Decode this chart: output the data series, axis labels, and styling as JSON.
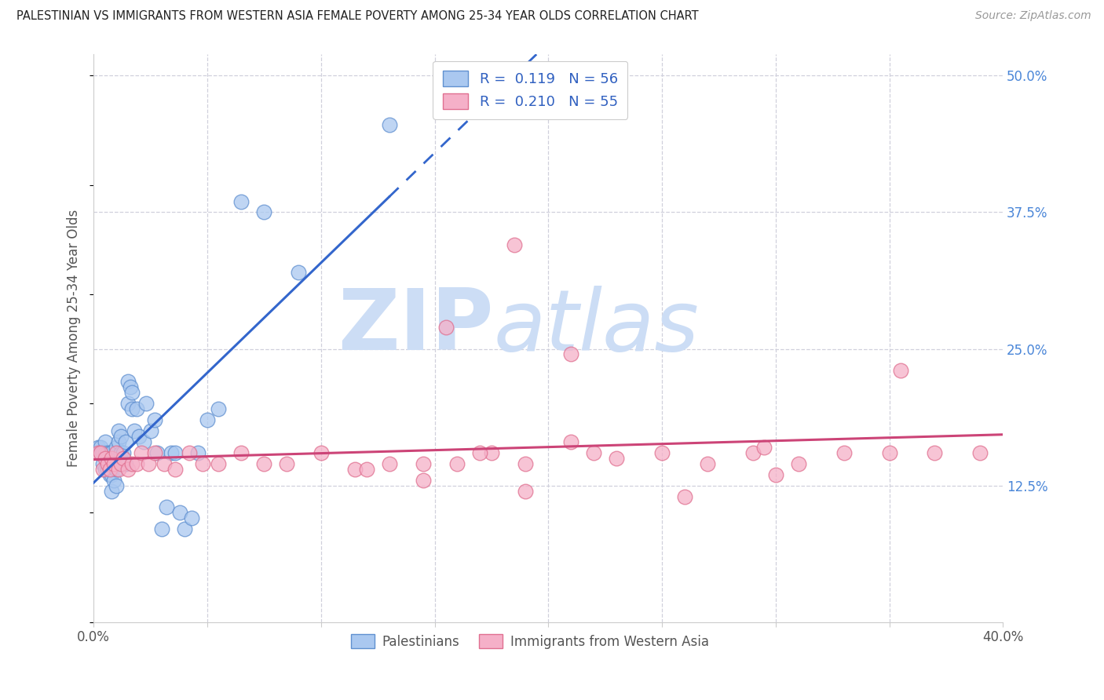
{
  "title": "PALESTINIAN VS IMMIGRANTS FROM WESTERN ASIA FEMALE POVERTY AMONG 25-34 YEAR OLDS CORRELATION CHART",
  "source": "Source: ZipAtlas.com",
  "ylabel": "Female Poverty Among 25-34 Year Olds",
  "xlim": [
    0.0,
    0.4
  ],
  "ylim": [
    0.0,
    0.52
  ],
  "xticks": [
    0.0,
    0.05,
    0.1,
    0.15,
    0.2,
    0.25,
    0.3,
    0.35,
    0.4
  ],
  "xticklabels": [
    "0.0%",
    "",
    "",
    "",
    "",
    "",
    "",
    "",
    "40.0%"
  ],
  "ytick_positions": [
    0.0,
    0.125,
    0.25,
    0.375,
    0.5
  ],
  "yticklabels_right": [
    "",
    "12.5%",
    "25.0%",
    "37.5%",
    "50.0%"
  ],
  "blue_color": "#aac8f0",
  "pink_color": "#f5b0c8",
  "blue_edge_color": "#6090d0",
  "pink_edge_color": "#e07090",
  "blue_line_color": "#3366cc",
  "pink_line_color": "#cc4477",
  "grid_color": "#d0d0dc",
  "background_color": "#ffffff",
  "watermark_text": "ZIPatlas",
  "watermark_color": "#ccddf5",
  "legend_R1": "0.119",
  "legend_N1": "56",
  "legend_R2": "0.210",
  "legend_N2": "55",
  "legend_text_color": "#3060c0",
  "palestinians_x": [
    0.002,
    0.003,
    0.003,
    0.004,
    0.004,
    0.005,
    0.005,
    0.005,
    0.006,
    0.006,
    0.006,
    0.007,
    0.007,
    0.007,
    0.008,
    0.008,
    0.008,
    0.009,
    0.009,
    0.01,
    0.01,
    0.01,
    0.011,
    0.011,
    0.012,
    0.012,
    0.013,
    0.014,
    0.014,
    0.015,
    0.015,
    0.016,
    0.017,
    0.017,
    0.018,
    0.019,
    0.02,
    0.022,
    0.023,
    0.025,
    0.027,
    0.028,
    0.03,
    0.032,
    0.034,
    0.036,
    0.038,
    0.04,
    0.043,
    0.046,
    0.05,
    0.055,
    0.065,
    0.075,
    0.09,
    0.13
  ],
  "palestinians_y": [
    0.16,
    0.155,
    0.16,
    0.145,
    0.155,
    0.14,
    0.155,
    0.165,
    0.14,
    0.15,
    0.155,
    0.135,
    0.145,
    0.155,
    0.12,
    0.135,
    0.155,
    0.13,
    0.145,
    0.125,
    0.14,
    0.16,
    0.165,
    0.175,
    0.155,
    0.17,
    0.155,
    0.145,
    0.165,
    0.2,
    0.22,
    0.215,
    0.195,
    0.21,
    0.175,
    0.195,
    0.17,
    0.165,
    0.2,
    0.175,
    0.185,
    0.155,
    0.085,
    0.105,
    0.155,
    0.155,
    0.1,
    0.085,
    0.095,
    0.155,
    0.185,
    0.195,
    0.385,
    0.375,
    0.32,
    0.455
  ],
  "immigrants_x": [
    0.002,
    0.003,
    0.004,
    0.005,
    0.006,
    0.007,
    0.008,
    0.009,
    0.01,
    0.011,
    0.012,
    0.013,
    0.015,
    0.017,
    0.019,
    0.021,
    0.024,
    0.027,
    0.031,
    0.036,
    0.042,
    0.048,
    0.055,
    0.065,
    0.075,
    0.085,
    0.1,
    0.115,
    0.13,
    0.145,
    0.16,
    0.175,
    0.19,
    0.21,
    0.23,
    0.25,
    0.27,
    0.29,
    0.31,
    0.33,
    0.35,
    0.37,
    0.39,
    0.17,
    0.22,
    0.12,
    0.145,
    0.19,
    0.26,
    0.3,
    0.21,
    0.155,
    0.295,
    0.185,
    0.355
  ],
  "immigrants_y": [
    0.155,
    0.155,
    0.14,
    0.15,
    0.145,
    0.14,
    0.15,
    0.145,
    0.155,
    0.14,
    0.145,
    0.15,
    0.14,
    0.145,
    0.145,
    0.155,
    0.145,
    0.155,
    0.145,
    0.14,
    0.155,
    0.145,
    0.145,
    0.155,
    0.145,
    0.145,
    0.155,
    0.14,
    0.145,
    0.145,
    0.145,
    0.155,
    0.145,
    0.165,
    0.15,
    0.155,
    0.145,
    0.155,
    0.145,
    0.155,
    0.155,
    0.155,
    0.155,
    0.155,
    0.155,
    0.14,
    0.13,
    0.12,
    0.115,
    0.135,
    0.245,
    0.27,
    0.16,
    0.345,
    0.23
  ]
}
